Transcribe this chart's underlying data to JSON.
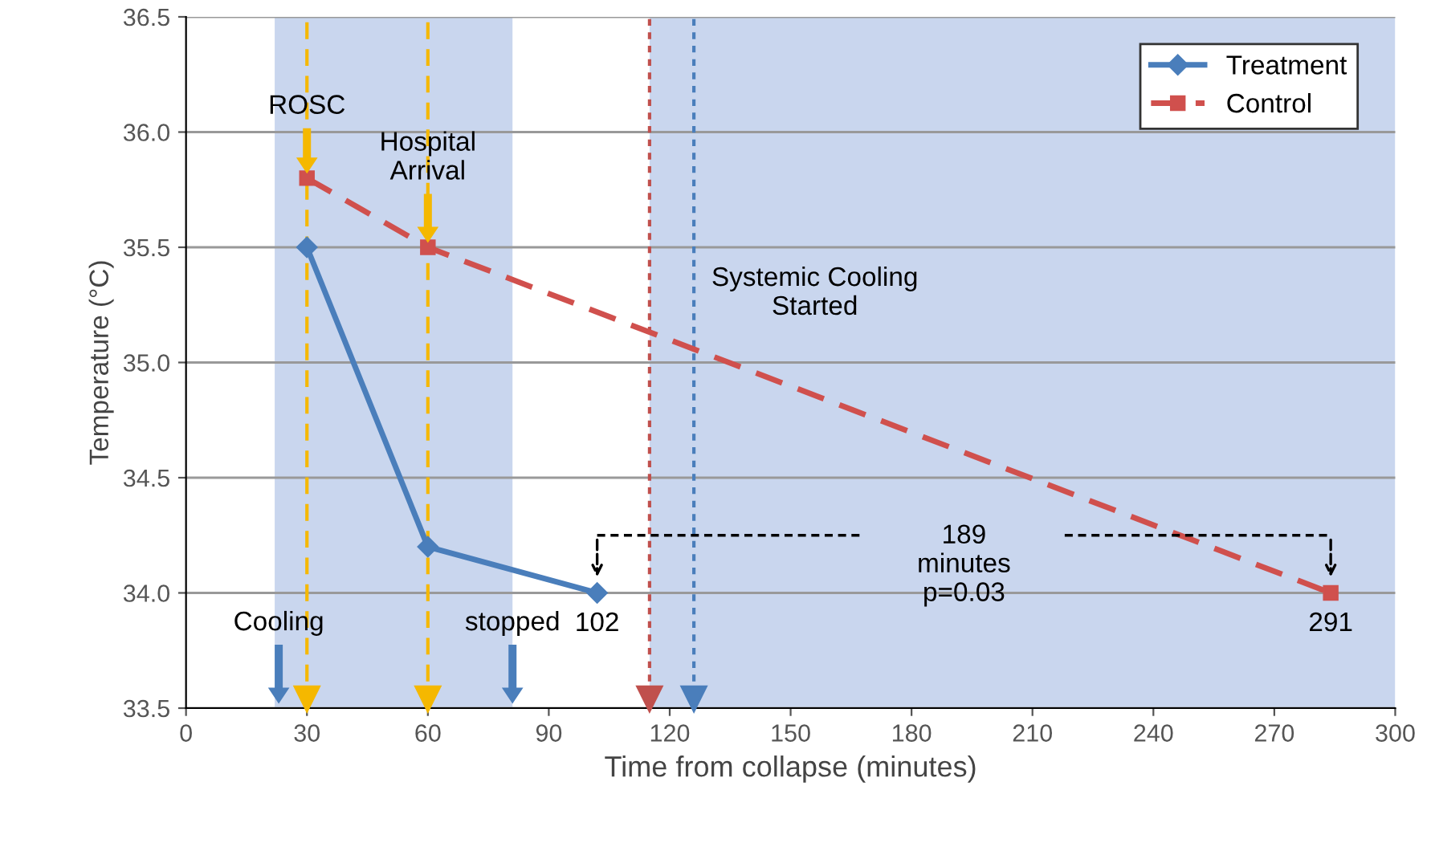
{
  "chart_data": {
    "type": "line",
    "xlabel": "Time from collapse (minutes)",
    "ylabel": "Temperature (°C)",
    "series": [
      {
        "name": "Treatment",
        "color": "#4a7ebb",
        "x": [
          30,
          60,
          102
        ],
        "values": [
          35.5,
          34.2,
          34.0
        ],
        "marker": "diamond",
        "line_style": "solid"
      },
      {
        "name": "Control",
        "color": "#d0504d",
        "x": [
          30,
          60,
          284
        ],
        "values": [
          35.8,
          35.5,
          34.0
        ],
        "marker": "square",
        "line_style": "dashed"
      }
    ],
    "xlim": [
      0,
      300
    ],
    "xticks": [
      0,
      30,
      60,
      90,
      120,
      150,
      180,
      210,
      240,
      270,
      300
    ],
    "ylim": [
      33.5,
      36.5
    ],
    "yticks": [
      {
        "value": 33.5,
        "label": "33.5"
      },
      {
        "value": 34,
        "label": "34.0"
      },
      {
        "value": 34.5,
        "label": "34.5"
      },
      {
        "value": 35,
        "label": "35.0"
      },
      {
        "value": 35.5,
        "label": "35.5"
      },
      {
        "value": 36,
        "label": "36.0"
      },
      {
        "value": 36.5,
        "label": "36.5"
      }
    ],
    "grid": "y",
    "legend": "top right",
    "bands": [
      {
        "axis": "x",
        "from": 22,
        "to": 81,
        "color": "#c9d6ee"
      },
      {
        "axis": "x",
        "from": 115,
        "to": 300,
        "color": "#c9d6ee"
      }
    ],
    "ref_lines": [
      {
        "axis": "x",
        "value": 30,
        "color": "#f5b800",
        "line_style": "dashed"
      },
      {
        "axis": "x",
        "value": 60,
        "color": "#f5b800",
        "line_style": "dashed"
      },
      {
        "axis": "x",
        "value": 115,
        "color": "#c0504d",
        "line_style": "dotted"
      },
      {
        "axis": "x",
        "value": 126,
        "color": "#4a7ebb",
        "line_style": "dotted"
      }
    ],
    "annotations": [
      {
        "text": "ROSC",
        "x": 30,
        "y": 35.8
      },
      {
        "text": "Hospital\nArrival",
        "x": 60,
        "y": 35.5
      },
      "Systemic Cooling\nStarted",
      {
        "text": "Cooling",
        "x": 23,
        "y": 33.5
      },
      {
        "text": "stopped",
        "x": 81,
        "y": 33.5
      },
      {
        "text": "102",
        "x": 102,
        "y": 34.0
      },
      {
        "text": "291",
        "x": 284,
        "y": 34.0
      },
      "189\nminutes\np=0.03"
    ]
  }
}
